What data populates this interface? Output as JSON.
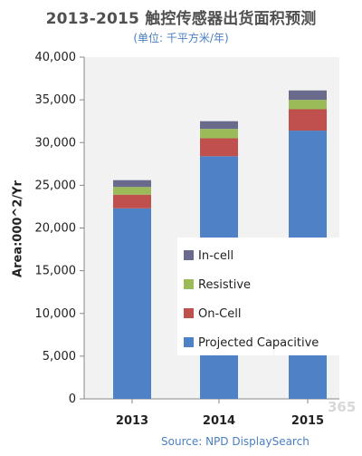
{
  "header": {
    "title": "2013-2015 触控传感器出货面积预测",
    "subtitle": "(单位: 千平方米/年)"
  },
  "footer": {
    "source": "Source: NPD DisplaySearch"
  },
  "watermark": "365",
  "chart_data": {
    "type": "bar",
    "stacked": true,
    "categories": [
      "2013",
      "2014",
      "2015"
    ],
    "ylabel": "Area:000^2/Yr",
    "ylim": [
      0,
      40000
    ],
    "yticks": [
      "0",
      "5,000",
      "10,000",
      "15,000",
      "20,000",
      "25,000",
      "30,000",
      "35,000",
      "40,000"
    ],
    "grid": false,
    "legend_position": "center-right (inside plot)",
    "series": [
      {
        "name": "Projected Capacitive",
        "color": "#4f81c6",
        "values": [
          22300,
          28400,
          31400
        ]
      },
      {
        "name": "On-Cell",
        "color": "#c0504d",
        "values": [
          1600,
          2100,
          2500
        ]
      },
      {
        "name": "Resistive",
        "color": "#9bbb59",
        "values": [
          900,
          1100,
          1100
        ]
      },
      {
        "name": "In-cell",
        "color": "#6a6a8c",
        "values": [
          800,
          900,
          1100
        ]
      }
    ],
    "legend_order": [
      "In-cell",
      "Resistive",
      "On-Cell",
      "Projected Capacitive"
    ]
  }
}
